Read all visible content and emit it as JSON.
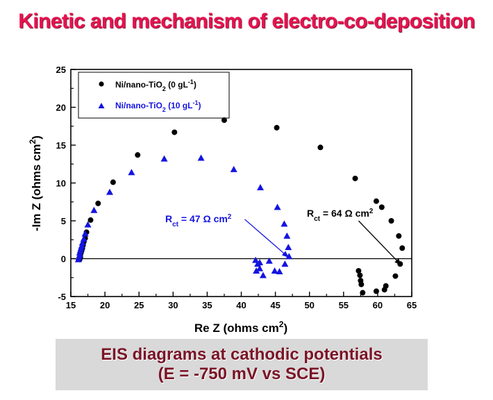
{
  "page": {
    "title": "Kinetic and mechanism of electro-co-deposition"
  },
  "caption": {
    "line1": "EIS diagrams at cathodic potentials",
    "line2": "(E = -750 mV vs SCE)"
  },
  "colors": {
    "title": "#e8124f",
    "caption_text": "#7a1426",
    "caption_bg": "#d9d9d9",
    "series_0": "#000000",
    "series_10": "#1414e0"
  },
  "chart_data": {
    "type": "scatter",
    "xlabel": "Re Z (ohms cm",
    "ylabel": "-Im Z (ohms cm",
    "label_superscript": "2",
    "label_close": ")",
    "xlim": [
      15,
      65
    ],
    "ylim": [
      -5,
      25
    ],
    "xticks": [
      15,
      20,
      25,
      30,
      35,
      40,
      45,
      50,
      55,
      60,
      65
    ],
    "yticks": [
      -5,
      0,
      5,
      10,
      15,
      20,
      25
    ],
    "reference_line_y": 0,
    "grid": false,
    "legend_position": "top-left",
    "series": [
      {
        "name": "Ni/nano-TiO2 (0 gL-1)",
        "name_main": "Ni/nano-TiO",
        "name_sub": "2",
        "name_mid": " (0 gL",
        "name_sup": "-1",
        "name_end": ")",
        "marker": "circle",
        "color": "#000000",
        "points": [
          [
            16.3,
            -0.1
          ],
          [
            16.4,
            0.2
          ],
          [
            16.4,
            0.5
          ],
          [
            16.5,
            0.8
          ],
          [
            16.6,
            1.1
          ],
          [
            16.7,
            1.4
          ],
          [
            16.8,
            1.8
          ],
          [
            16.9,
            2.2
          ],
          [
            17.1,
            2.7
          ],
          [
            17.3,
            3.5
          ],
          [
            17.9,
            5.1
          ],
          [
            19.0,
            7.3
          ],
          [
            21.2,
            10.1
          ],
          [
            24.8,
            13.7
          ],
          [
            30.2,
            16.7
          ],
          [
            37.5,
            18.3
          ],
          [
            45.2,
            17.3
          ],
          [
            51.6,
            14.7
          ],
          [
            56.7,
            10.6
          ],
          [
            59.8,
            7.6
          ],
          [
            60.6,
            6.8
          ],
          [
            62.0,
            5.0
          ],
          [
            63.1,
            3.0
          ],
          [
            63.6,
            1.4
          ],
          [
            63.3,
            -0.7
          ],
          [
            62.6,
            -2.3
          ],
          [
            61.2,
            -3.6
          ],
          [
            61.0,
            -4.1
          ],
          [
            59.8,
            -4.3
          ],
          [
            57.8,
            -4.5
          ],
          [
            57.6,
            -3.4
          ],
          [
            57.5,
            -2.9
          ],
          [
            57.4,
            -2.2
          ],
          [
            57.2,
            -1.6
          ]
        ]
      },
      {
        "name": "Ni/nano-TiO2 (10 gL-1)",
        "name_main": "Ni/nano-TiO",
        "name_sub": "2",
        "name_mid": " (10 gL",
        "name_sup": "-1",
        "name_end": ")",
        "marker": "triangle",
        "color": "#1414e0",
        "points": [
          [
            16.1,
            -0.1
          ],
          [
            16.2,
            0.2
          ],
          [
            16.3,
            0.5
          ],
          [
            16.3,
            0.8
          ],
          [
            16.4,
            1.1
          ],
          [
            16.5,
            1.4
          ],
          [
            16.6,
            1.7
          ],
          [
            16.7,
            2.1
          ],
          [
            16.9,
            2.6
          ],
          [
            17.1,
            3.3
          ],
          [
            17.5,
            4.5
          ],
          [
            18.4,
            6.4
          ],
          [
            20.7,
            8.8
          ],
          [
            23.9,
            11.4
          ],
          [
            28.7,
            13.2
          ],
          [
            34.1,
            13.3
          ],
          [
            38.9,
            11.8
          ],
          [
            42.8,
            9.4
          ],
          [
            45.3,
            6.8
          ],
          [
            46.3,
            4.6
          ],
          [
            46.7,
            3.0
          ],
          [
            46.9,
            1.5
          ],
          [
            47.0,
            0.3
          ],
          [
            46.4,
            -0.7
          ],
          [
            45.6,
            -1.7
          ],
          [
            44.9,
            -1.6
          ],
          [
            43.2,
            -2.2
          ],
          [
            42.7,
            -1.3
          ],
          [
            42.4,
            -0.7
          ],
          [
            42.1,
            -0.2
          ],
          [
            42.7,
            -0.5
          ],
          [
            42.2,
            -1.6
          ],
          [
            44.1,
            -0.3
          ]
        ]
      }
    ],
    "annotations": [
      {
        "main": "R",
        "sub": "ct",
        "rest": " = 47 Ω cm",
        "sup": "2",
        "color": "#1414e0",
        "arrow_from": [
          40.5,
          5.2
        ],
        "arrow_to": [
          46.9,
          0.2
        ]
      },
      {
        "main": "R",
        "sub": "ct",
        "rest": " = 64 Ω cm",
        "sup": "2",
        "color": "#000000",
        "arrow_from": [
          57.2,
          5.0
        ],
        "arrow_to": [
          63.4,
          -0.8
        ]
      }
    ]
  }
}
